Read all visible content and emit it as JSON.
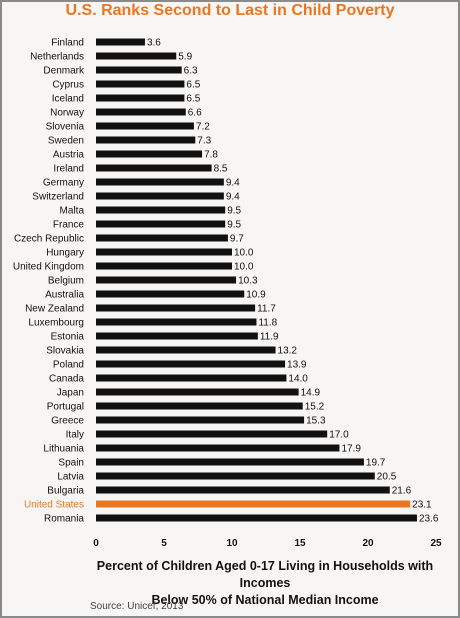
{
  "chart_data": {
    "type": "bar",
    "orientation": "horizontal",
    "title": "U.S. Ranks Second to Last in Child Poverty",
    "xlabel_line1": "Percent of Children Aged 0-17 Living in Households with Incomes",
    "xlabel_line2": "Below 50% of National Median Income",
    "source": "Source: Unicef, 2013",
    "categories": [
      "Finland",
      "Netherlands",
      "Denmark",
      "Cyprus",
      "Iceland",
      "Norway",
      "Slovenia",
      "Sweden",
      "Austria",
      "Ireland",
      "Germany",
      "Switzerland",
      "Malta",
      "France",
      "Czech Republic",
      "Hungary",
      "United Kingdom",
      "Belgium",
      "Australia",
      "New Zealand",
      "Luxembourg",
      "Estonia",
      "Slovakia",
      "Poland",
      "Canada",
      "Japan",
      "Portugal",
      "Greece",
      "Italy",
      "Lithuania",
      "Spain",
      "Latvia",
      "Bulgaria",
      "United States",
      "Romania"
    ],
    "values": [
      3.6,
      5.9,
      6.3,
      6.5,
      6.5,
      6.6,
      7.2,
      7.3,
      7.8,
      8.5,
      9.4,
      9.4,
      9.5,
      9.5,
      9.7,
      10.0,
      10.0,
      10.3,
      10.9,
      11.7,
      11.8,
      11.9,
      13.2,
      13.9,
      14.0,
      14.9,
      15.2,
      15.3,
      17.0,
      17.9,
      19.7,
      20.5,
      21.6,
      23.1,
      23.6
    ],
    "value_labels": [
      "3.6",
      "5.9",
      "6.3",
      "6.5",
      "6.5",
      "6.6",
      "7.2",
      "7.3",
      "7.8",
      "8.5",
      "9.4",
      "9.4",
      "9.5",
      "9.5",
      "9.7",
      "10.0",
      "10.0",
      "10.3",
      "10.9",
      "11.7",
      "11.8",
      "11.9",
      "13.2",
      "13.9",
      "14.0",
      "14.9",
      "15.2",
      "15.3",
      "17.0",
      "17.9",
      "19.7",
      "20.5",
      "21.6",
      "23.1",
      "23.6"
    ],
    "highlight": "United States",
    "xlim": [
      0,
      25
    ],
    "xticks": [
      "0",
      "5",
      "10",
      "15",
      "20",
      "25"
    ],
    "grid": false,
    "colors": {
      "bar": "#111111",
      "highlight": "#e87722",
      "title": "#e87722"
    }
  }
}
